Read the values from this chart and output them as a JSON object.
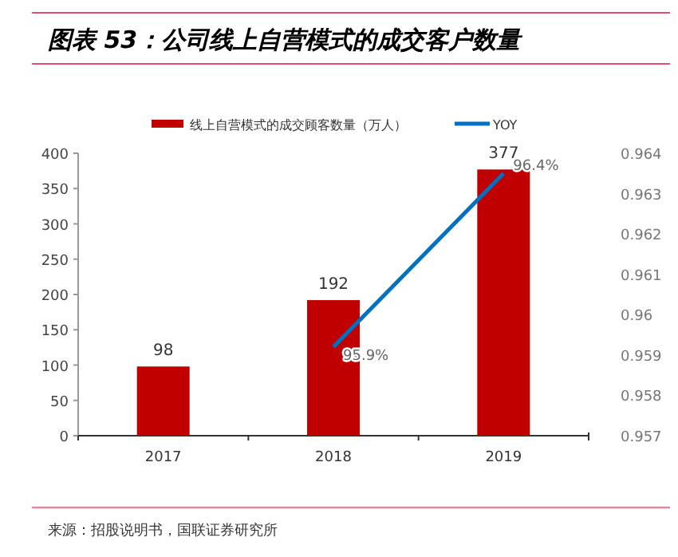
{
  "chart_data": {
    "type": "bar",
    "title": "图表 53：公司线上自营模式的成交客户数量",
    "categories": [
      "2017",
      "2018",
      "2019"
    ],
    "series": [
      {
        "name": "线上自营模式的成交顾客数量（万人）",
        "color": "#c00000",
        "values": [
          98,
          192,
          377
        ],
        "value_labels": [
          "98",
          "192",
          "377"
        ]
      },
      {
        "name": "YOY",
        "type": "line",
        "axis": "y2",
        "color": "#0070c0",
        "values": [
          null,
          0.9592,
          0.9635
        ],
        "value_labels": [
          null,
          "95.9%",
          "96.4%"
        ]
      }
    ],
    "ylim": [
      0,
      400
    ],
    "yticks": [
      0,
      50,
      100,
      150,
      200,
      250,
      300,
      350,
      400
    ],
    "y2lim": [
      0.957,
      0.964
    ],
    "y2ticks": [
      0.957,
      0.958,
      0.959,
      0.96,
      0.961,
      0.962,
      0.963,
      0.964
    ],
    "legend": "top",
    "grid": false,
    "annotations": [
      "来源：招股说明书，国联证券研究所"
    ]
  }
}
